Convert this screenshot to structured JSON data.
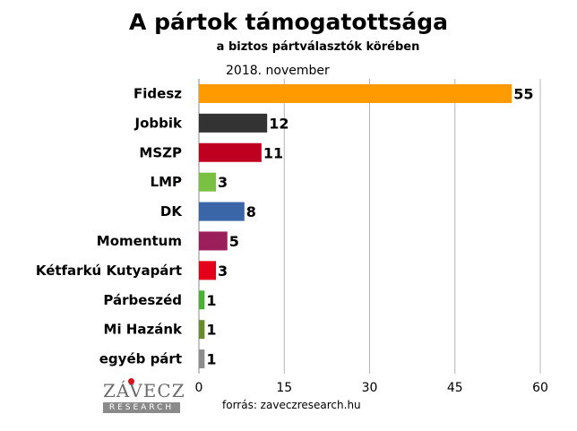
{
  "header": {
    "title": "A pártok támogatottsága",
    "subtitle": "a biztos pártválasztók körében",
    "period": "2018. november"
  },
  "footer": {
    "source": "forrás: zaveczresearch.hu",
    "logo_name": "ZÁVECZ",
    "logo_band": "RESEARCH"
  },
  "colors": {
    "gridline": "#b4b4b4",
    "axis": "#8a8a8a"
  },
  "chart_data": {
    "type": "bar",
    "orientation": "horizontal",
    "title": "A pártok támogatottsága",
    "subtitle": "a biztos pártválasztók körében",
    "xlabel": "",
    "ylabel": "",
    "xlim": [
      0,
      60
    ],
    "xticks": [
      0,
      15,
      30,
      45,
      60
    ],
    "grid": true,
    "legend": "none",
    "categories": [
      "Fidesz",
      "Jobbik",
      "MSZP",
      "LMP",
      "DK",
      "Momentum",
      "Kétfarkú Kutyapárt",
      "Párbeszéd",
      "Mi Hazánk",
      "egyéb párt"
    ],
    "values": [
      55,
      12,
      11,
      3,
      8,
      5,
      3,
      1,
      1,
      1
    ],
    "bar_colors": [
      "#ff9a00",
      "#333333",
      "#c00020",
      "#7ac143",
      "#3a66a7",
      "#9b1f5a",
      "#e2001a",
      "#4caf37",
      "#6a8a2e",
      "#8c8c8c"
    ]
  }
}
